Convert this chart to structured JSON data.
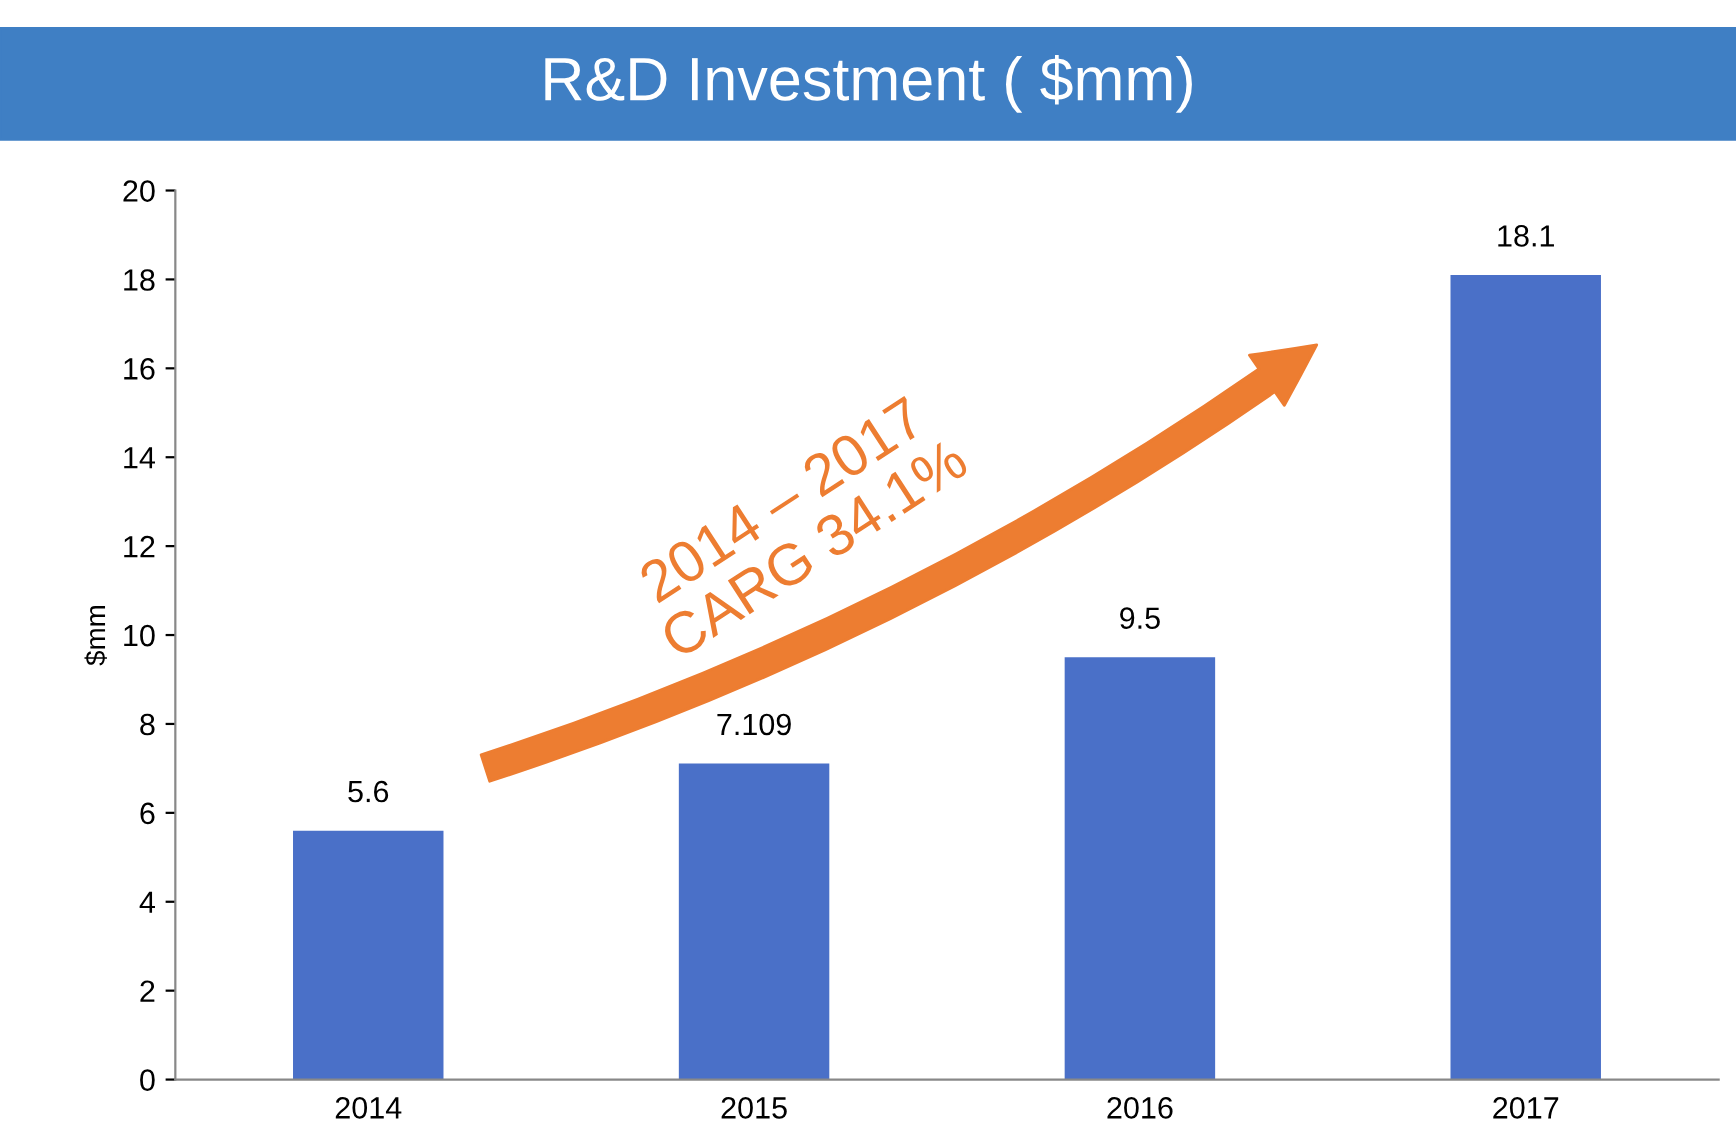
{
  "chart_data": {
    "type": "bar",
    "title": "R&D Investment ( $mm)",
    "ylabel": "$mm",
    "categories": [
      "2014",
      "2015",
      "2016",
      "2017"
    ],
    "values": [
      5.6,
      7.109,
      9.5,
      18.1
    ],
    "color": "#4a70c8",
    "ylim": [
      0,
      20
    ],
    "yticks": [
      0,
      2,
      4,
      6,
      8,
      10,
      12,
      14,
      16,
      18,
      20
    ],
    "grid": false,
    "data_labels": true,
    "annotations": [
      "2014 – 2017\nCARG 34.1%"
    ]
  }
}
